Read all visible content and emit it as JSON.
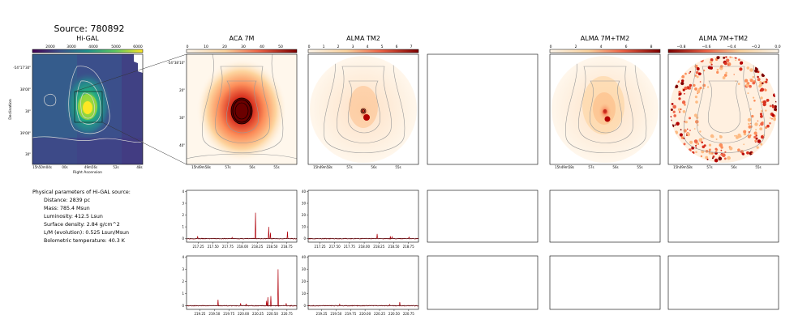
{
  "figure": {
    "source_title": "Source: 780892",
    "panels": {
      "higal": {
        "title": "Hi-GAL",
        "colorbar_ticks": [
          "2000",
          "3000",
          "4000",
          "5000",
          "6000"
        ],
        "xticks": [
          "15h50m04s",
          "00s",
          "49m56s",
          "52s",
          "48s"
        ],
        "yticks": [
          "-54°17'30\"",
          "38'00\"",
          "30\"",
          "39'00\"",
          "30\""
        ],
        "xlabel": "Right Ascension",
        "ylabel": "Declination"
      },
      "aca": {
        "title": "ACA 7M",
        "colorbar_ticks": [
          "0",
          "10",
          "20",
          "30",
          "40",
          "50"
        ],
        "xticks": [
          "15h49m58s",
          "57s",
          "56s",
          "55s"
        ],
        "yticks": [
          "-54°38'10\"",
          "20\"",
          "30\"",
          "40\""
        ]
      },
      "alma_tm2": {
        "title": "ALMA TM2",
        "colorbar_ticks": [
          "0",
          "1",
          "2",
          "3",
          "4",
          "5",
          "6",
          "7"
        ],
        "xticks": [
          "15h49m58s",
          "57s",
          "56s",
          "55s"
        ]
      },
      "alma_7m_tm2": {
        "title": "ALMA 7M+TM2",
        "colorbar_ticks": [
          "0",
          "2",
          "4",
          "6",
          "8"
        ],
        "xticks": [
          "15h49m58s",
          "57s",
          "56s",
          "55s"
        ]
      },
      "alma_7m_tm2_neg": {
        "title": "ALMA 7M+TM2",
        "colorbar_ticks": [
          "−0.8",
          "−0.6",
          "−0.4",
          "−0.2",
          "0.0"
        ],
        "xticks": [
          "15h49m58s",
          "57s",
          "56s",
          "55s"
        ]
      }
    },
    "properties": {
      "heading": "Physical parameters of Hi-GAL source:",
      "lines": [
        "Distance: 2839 pc",
        "Mass: 785.4 Msun",
        "Luminosity: 412.5 Lsun",
        "Surface density: 2.84 g/cm^2",
        "L/M (evolution): 0.525 Lsun/Msun",
        "Bolometric temperature: 40.3 K"
      ]
    }
  },
  "chart_data": [
    {
      "type": "line",
      "title": "",
      "xlabel": "",
      "ylabel": "",
      "xlim": [
        217.05,
        218.92
      ],
      "ylim": [
        -0.3,
        4.1
      ],
      "xticks": [
        "217.25",
        "217.50",
        "217.75",
        "218.00",
        "218.25",
        "218.50",
        "218.75"
      ],
      "yticks": [
        "0",
        "1",
        "2",
        "3",
        "4"
      ],
      "color": "#b0000a",
      "peaks": [
        {
          "x": 217.24,
          "y": 0.2
        },
        {
          "x": 217.82,
          "y": 0.1
        },
        {
          "x": 218.22,
          "y": 2.2
        },
        {
          "x": 218.44,
          "y": 1.0
        },
        {
          "x": 218.47,
          "y": 0.5
        },
        {
          "x": 218.76,
          "y": 0.6
        }
      ]
    },
    {
      "type": "line",
      "title": "",
      "xlabel": "",
      "ylabel": "",
      "xlim": [
        217.05,
        218.92
      ],
      "ylim": [
        -3,
        41
      ],
      "xticks": [
        "217.25",
        "217.50",
        "217.75",
        "218.00",
        "218.25",
        "218.50",
        "218.75"
      ],
      "yticks": [
        "0",
        "10",
        "20",
        "30",
        "40"
      ],
      "color": "#b0000a",
      "peaks": [
        {
          "x": 218.22,
          "y": 4
        },
        {
          "x": 218.44,
          "y": 2
        },
        {
          "x": 218.47,
          "y": 1.5
        },
        {
          "x": 218.76,
          "y": 1.5
        }
      ]
    },
    {
      "type": "line",
      "title": "",
      "xlabel": "",
      "ylabel": "",
      "xlim": [
        219.02,
        220.92
      ],
      "ylim": [
        -0.3,
        4.1
      ],
      "xticks": [
        "219.25",
        "219.50",
        "219.75",
        "220.00",
        "220.25",
        "220.50",
        "220.75"
      ],
      "yticks": [
        "0",
        "1",
        "2",
        "3",
        "4"
      ],
      "color": "#b0000a",
      "peaks": [
        {
          "x": 219.56,
          "y": 0.5
        },
        {
          "x": 219.95,
          "y": 0.2
        },
        {
          "x": 220.05,
          "y": 0.15
        },
        {
          "x": 220.4,
          "y": 0.4
        },
        {
          "x": 220.42,
          "y": 0.7
        },
        {
          "x": 220.47,
          "y": 0.8
        },
        {
          "x": 220.6,
          "y": 3.0
        },
        {
          "x": 220.74,
          "y": 0.2
        }
      ]
    },
    {
      "type": "line",
      "title": "",
      "xlabel": "",
      "ylabel": "",
      "xlim": [
        219.02,
        220.92
      ],
      "ylim": [
        -3,
        41
      ],
      "xticks": [
        "219.25",
        "219.50",
        "219.75",
        "220.00",
        "220.25",
        "220.50",
        "220.75"
      ],
      "yticks": [
        "0",
        "10",
        "20",
        "30",
        "40"
      ],
      "color": "#b0000a",
      "peaks": [
        {
          "x": 219.56,
          "y": 1.2
        },
        {
          "x": 220.42,
          "y": 1.0
        },
        {
          "x": 220.6,
          "y": 3.0
        }
      ]
    }
  ]
}
